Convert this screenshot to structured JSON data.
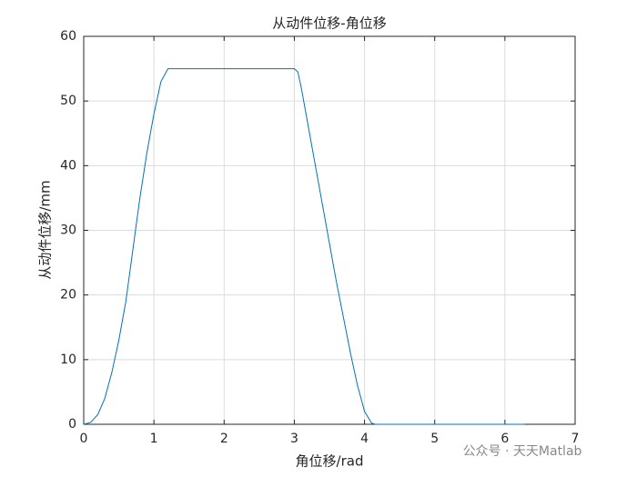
{
  "chart_data": {
    "type": "line",
    "title": "从动件位移-角位移",
    "xlabel": "角位移/rad",
    "ylabel": "从动件位移/mm",
    "watermark": "公众号 · 天天Matlab",
    "series": [
      {
        "color": "#0072bd",
        "x": [
          0,
          0.1,
          0.2,
          0.3,
          0.4,
          0.5,
          0.6,
          0.7,
          0.8,
          0.9,
          1.0,
          1.1,
          1.2,
          1.5,
          2.0,
          2.5,
          3.0,
          3.05,
          3.1,
          3.2,
          3.3,
          3.4,
          3.5,
          3.6,
          3.7,
          3.8,
          3.9,
          4.0,
          4.1,
          4.15,
          5.0,
          6.28
        ],
        "values": [
          0,
          0.3,
          1.5,
          4,
          8,
          13,
          19,
          27,
          35,
          42,
          48,
          53,
          55,
          55,
          55,
          55,
          55,
          54.5,
          52,
          46,
          40,
          34,
          28,
          22,
          16.5,
          11,
          6,
          2,
          0.2,
          0,
          0,
          0
        ]
      }
    ],
    "xlim": [
      0,
      7
    ],
    "xticks": [
      0,
      1,
      2,
      3,
      4,
      5,
      6,
      7
    ],
    "ylim": [
      0,
      60
    ],
    "yticks": [
      0,
      10,
      20,
      30,
      40,
      50,
      60
    ],
    "grid": true
  }
}
